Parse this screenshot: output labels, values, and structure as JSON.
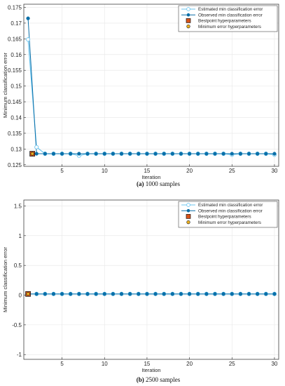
{
  "chart_data": [
    {
      "type": "line",
      "caption_label": "(a)",
      "caption_text": " 1000 samples",
      "xlabel": "Iteration",
      "ylabel": "Minimum classification error",
      "xlim": [
        0.5,
        30.5
      ],
      "ylim": [
        0.1245,
        0.176
      ],
      "xticks": [
        5,
        10,
        15,
        20,
        25,
        30
      ],
      "yticks": [
        0.125,
        0.13,
        0.135,
        0.14,
        0.145,
        0.15,
        0.155,
        0.16,
        0.165,
        0.17,
        0.175
      ],
      "ytick_labels": [
        "0.125",
        "0.13",
        "0.135",
        "0.14",
        "0.145",
        "0.15",
        "0.155",
        "0.16",
        "0.165",
        "0.17",
        "0.175"
      ],
      "grid": true,
      "legend_position": "top-right",
      "x": [
        1,
        2,
        3,
        4,
        5,
        6,
        7,
        8,
        9,
        10,
        11,
        12,
        13,
        14,
        15,
        16,
        17,
        18,
        19,
        20,
        21,
        22,
        23,
        24,
        25,
        26,
        27,
        28,
        29,
        30
      ],
      "series": [
        {
          "name": "Estimated min classification error",
          "color": "#6ec6ef",
          "marker": "hollow-circle",
          "values": [
            0.1648,
            0.1306,
            0.1285,
            0.1285,
            0.1285,
            0.1285,
            0.1279,
            0.1285,
            0.1285,
            0.1285,
            0.1285,
            0.1285,
            0.1285,
            0.1285,
            0.1285,
            0.1285,
            0.1285,
            0.1285,
            0.1285,
            0.1285,
            0.1285,
            0.1285,
            0.1285,
            0.1285,
            0.1282,
            0.1285,
            0.1285,
            0.1285,
            0.1285,
            0.1282
          ]
        },
        {
          "name": "Observed min classification error",
          "color": "#0a6fa8",
          "marker": "filled-circle",
          "values": [
            0.1715,
            0.1285,
            0.1285,
            0.1285,
            0.1285,
            0.1285,
            0.1285,
            0.1285,
            0.1285,
            0.1285,
            0.1285,
            0.1285,
            0.1285,
            0.1285,
            0.1285,
            0.1285,
            0.1285,
            0.1285,
            0.1285,
            0.1285,
            0.1285,
            0.1285,
            0.1285,
            0.1285,
            0.1285,
            0.1285,
            0.1285,
            0.1285,
            0.1285,
            0.1285
          ]
        },
        {
          "name": "Bestpoint hyperparameters",
          "color": "#d95319",
          "marker": "square",
          "point": [
            1.5,
            0.1285
          ]
        },
        {
          "name": "Minimum error hyperparameters",
          "color": "#edb120",
          "marker": "circle",
          "point": [
            1.5,
            0.1285
          ]
        }
      ]
    },
    {
      "type": "line",
      "caption_label": "(b)",
      "caption_text": " 2500 samples",
      "xlabel": "Iteration",
      "ylabel": "Minimum classification error",
      "xlim": [
        0.5,
        30.5
      ],
      "ylim": [
        -1.08,
        1.6
      ],
      "xticks": [
        5,
        10,
        15,
        20,
        25,
        30
      ],
      "yticks": [
        -1,
        -0.5,
        0,
        0.5,
        1,
        1.5
      ],
      "ytick_labels": [
        "-1",
        "-0.5",
        "0",
        "0.5",
        "1",
        "1.5"
      ],
      "grid": true,
      "legend_position": "top-right",
      "x": [
        1,
        2,
        3,
        4,
        5,
        6,
        7,
        8,
        9,
        10,
        11,
        12,
        13,
        14,
        15,
        16,
        17,
        18,
        19,
        20,
        21,
        22,
        23,
        24,
        25,
        26,
        27,
        28,
        29,
        30
      ],
      "series": [
        {
          "name": "Estimated min classification error",
          "color": "#6ec6ef",
          "marker": "hollow-circle",
          "values": [
            0.02,
            0.02,
            0.02,
            0.02,
            0.02,
            0.02,
            0.02,
            0.02,
            0.02,
            0.02,
            0.02,
            0.02,
            0.02,
            0.02,
            0.02,
            0.02,
            0.02,
            0.02,
            0.02,
            0.02,
            0.02,
            0.02,
            0.02,
            0.02,
            0.02,
            0.02,
            0.02,
            0.02,
            0.02,
            0.02
          ]
        },
        {
          "name": "Observed min classification error",
          "color": "#0a6fa8",
          "marker": "filled-circle",
          "values": [
            0.02,
            0.02,
            0.02,
            0.02,
            0.02,
            0.02,
            0.02,
            0.02,
            0.02,
            0.02,
            0.02,
            0.02,
            0.02,
            0.02,
            0.02,
            0.02,
            0.02,
            0.02,
            0.02,
            0.02,
            0.02,
            0.02,
            0.02,
            0.02,
            0.02,
            0.02,
            0.02,
            0.02,
            0.02,
            0.02
          ]
        },
        {
          "name": "Bestpoint hyperparameters",
          "color": "#d95319",
          "marker": "square",
          "point": [
            1,
            0.02
          ]
        },
        {
          "name": "Minimum error hyperparameters",
          "color": "#edb120",
          "marker": "circle",
          "point": [
            1,
            0.02
          ]
        }
      ]
    }
  ]
}
